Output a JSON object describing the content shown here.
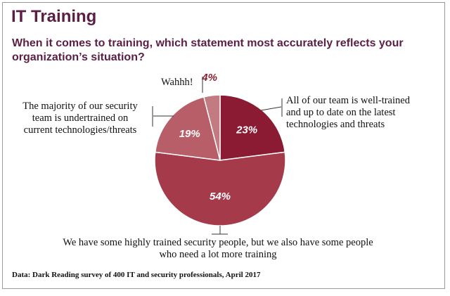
{
  "title": "IT Training",
  "subtitle": "When it comes to training, which statement most accurately reflects your organization’s situation?",
  "source": "Data: Dark Reading survey of 400 IT and security professionals, April 2017",
  "chart_data": {
    "type": "pie",
    "slices": [
      {
        "label_lines": [
          "All of our team is well-trained",
          "and up to date on the latest",
          "technologies and threats"
        ],
        "value": 23,
        "display": "23%",
        "color": "#8b1a33"
      },
      {
        "label_lines": [
          "We have some highly trained security people, but we also have some people",
          "who need a lot more training"
        ],
        "value": 54,
        "display": "54%",
        "color": "#a53a4b"
      },
      {
        "label_lines": [
          "The majority of our security",
          "team is undertrained on",
          "current technologies/threats"
        ],
        "value": 19,
        "display": "19%",
        "color": "#b85e68"
      },
      {
        "label_lines": [
          "Wahhh!"
        ],
        "value": 4,
        "display": "4%",
        "color": "#c27b81"
      }
    ]
  }
}
